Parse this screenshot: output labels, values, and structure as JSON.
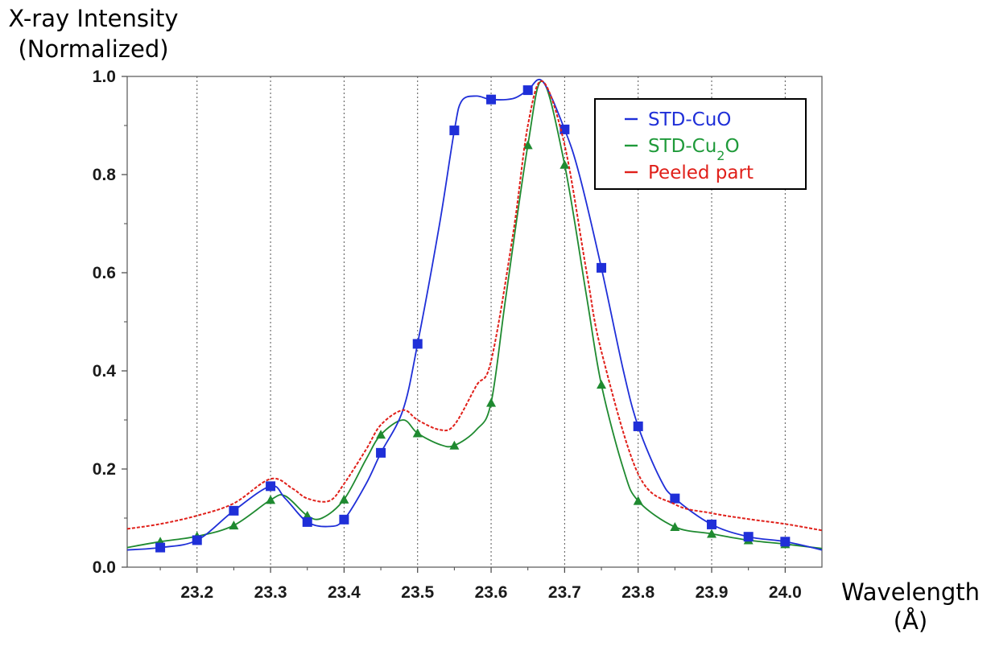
{
  "chart_data": {
    "type": "line",
    "title": "",
    "ylabel_line1": "X-ray Intensity",
    "ylabel_line2": "(Normalized)",
    "xlabel_line1": "Wavelength",
    "xlabel_line2": "(Å)",
    "xlim": [
      23.105,
      24.05
    ],
    "ylim": [
      0.0,
      1.0
    ],
    "x_ticks": [
      "23.2",
      "23.3",
      "23.4",
      "23.5",
      "23.6",
      "23.7",
      "23.8",
      "23.9",
      "24.0"
    ],
    "y_ticks": [
      "0.0",
      "0.2",
      "0.4",
      "0.6",
      "0.8",
      "1.0"
    ],
    "grid": "vertical dotted lines at x ticks",
    "legend_position": "top-right",
    "legend_entries": [
      {
        "key": "std_cuo",
        "label": "STD-CuO",
        "color": "#1f2fd8"
      },
      {
        "key": "std_cu2o",
        "label_main": "STD-Cu",
        "label_sub": "2",
        "label_end": "O",
        "color": "#1f9a3a"
      },
      {
        "key": "peeled",
        "label": "Peeled part",
        "color": "#e0201a"
      }
    ],
    "series": [
      {
        "key": "std_cuo",
        "color": "#1f2fd8",
        "marker": "square",
        "x": [
          23.105,
          23.15,
          23.2,
          23.25,
          23.3,
          23.32,
          23.35,
          23.38,
          23.4,
          23.43,
          23.45,
          23.48,
          23.5,
          23.53,
          23.55,
          23.56,
          23.58,
          23.6,
          23.63,
          23.65,
          23.67,
          23.7,
          23.72,
          23.75,
          23.78,
          23.8,
          23.83,
          23.85,
          23.9,
          23.95,
          24.0,
          24.05
        ],
        "y": [
          0.035,
          0.04,
          0.055,
          0.115,
          0.165,
          0.14,
          0.092,
          0.083,
          0.097,
          0.17,
          0.233,
          0.32,
          0.455,
          0.7,
          0.89,
          0.95,
          0.96,
          0.953,
          0.955,
          0.972,
          0.99,
          0.892,
          0.8,
          0.61,
          0.4,
          0.287,
          0.18,
          0.14,
          0.087,
          0.062,
          0.052,
          0.035
        ],
        "markers_x": [
          23.15,
          23.2,
          23.25,
          23.3,
          23.35,
          23.4,
          23.45,
          23.5,
          23.55,
          23.6,
          23.65,
          23.7,
          23.75,
          23.8,
          23.85,
          23.9,
          23.95,
          24.0
        ],
        "markers_y": [
          0.04,
          0.055,
          0.115,
          0.165,
          0.092,
          0.097,
          0.233,
          0.455,
          0.89,
          0.953,
          0.972,
          0.892,
          0.61,
          0.287,
          0.14,
          0.087,
          0.062,
          0.052
        ]
      },
      {
        "key": "std_cu2o",
        "color": "#1f8a30",
        "marker": "triangle",
        "x": [
          23.105,
          23.15,
          23.2,
          23.25,
          23.3,
          23.32,
          23.35,
          23.37,
          23.4,
          23.43,
          23.45,
          23.48,
          23.5,
          23.53,
          23.55,
          23.58,
          23.6,
          23.62,
          23.65,
          23.67,
          23.7,
          23.73,
          23.75,
          23.78,
          23.8,
          23.85,
          23.9,
          23.95,
          24.0,
          24.05
        ],
        "y": [
          0.04,
          0.052,
          0.063,
          0.085,
          0.137,
          0.145,
          0.105,
          0.1,
          0.138,
          0.22,
          0.27,
          0.3,
          0.273,
          0.25,
          0.248,
          0.28,
          0.335,
          0.55,
          0.86,
          0.99,
          0.82,
          0.55,
          0.372,
          0.2,
          0.135,
          0.082,
          0.068,
          0.055,
          0.047,
          0.038
        ],
        "markers_x": [
          23.15,
          23.2,
          23.25,
          23.3,
          23.35,
          23.4,
          23.45,
          23.5,
          23.55,
          23.6,
          23.65,
          23.7,
          23.75,
          23.8,
          23.85,
          23.9,
          23.95,
          24.0
        ],
        "markers_y": [
          0.052,
          0.063,
          0.085,
          0.137,
          0.105,
          0.138,
          0.27,
          0.273,
          0.248,
          0.335,
          0.86,
          0.82,
          0.372,
          0.135,
          0.082,
          0.068,
          0.055,
          0.047
        ]
      },
      {
        "key": "peeled",
        "color": "#e0201a",
        "marker": "none",
        "dashed": true,
        "x": [
          23.105,
          23.15,
          23.2,
          23.25,
          23.3,
          23.33,
          23.35,
          23.38,
          23.4,
          23.43,
          23.45,
          23.48,
          23.5,
          23.53,
          23.55,
          23.58,
          23.6,
          23.63,
          23.65,
          23.67,
          23.7,
          23.73,
          23.75,
          23.8,
          23.85,
          23.9,
          23.95,
          24.0,
          24.05
        ],
        "y": [
          0.078,
          0.088,
          0.105,
          0.13,
          0.18,
          0.16,
          0.14,
          0.135,
          0.17,
          0.24,
          0.29,
          0.32,
          0.3,
          0.28,
          0.29,
          0.37,
          0.42,
          0.68,
          0.9,
          0.99,
          0.86,
          0.6,
          0.44,
          0.19,
          0.128,
          0.11,
          0.098,
          0.088,
          0.075
        ]
      }
    ]
  }
}
